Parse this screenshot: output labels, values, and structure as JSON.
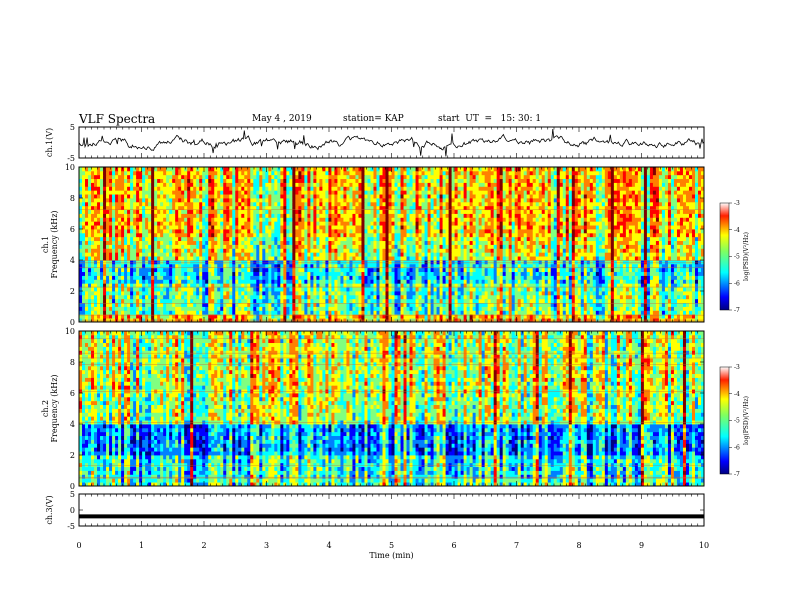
{
  "header": {
    "title": "VLF Spectra",
    "date": "May 4 , 2019",
    "station": "station= KAP",
    "start": "start  UT  =   15: 30: 1"
  },
  "chart_data": [
    {
      "type": "line",
      "ylabel": "ch.1(V)",
      "ylim": [
        -5,
        5
      ],
      "yticks": [
        "5",
        "-5"
      ],
      "xlim": [
        0,
        10
      ],
      "series": [
        {
          "values": "noisy voltage trace around 0 V, roughly between -4 and +4"
        }
      ]
    },
    {
      "type": "heatmap",
      "ylabel": "ch.1\nFrequency (kHz)",
      "ylim": [
        0,
        10
      ],
      "yticks": [
        "0",
        "2",
        "4",
        "6",
        "8",
        "10"
      ],
      "xlim": [
        0,
        10
      ],
      "colorbar": {
        "label": "log(PSD)(V²/Hz)",
        "range": [
          -7,
          -3
        ],
        "ticks": [
          "-3",
          "-4",
          "-5",
          "-6",
          "-7"
        ]
      }
    },
    {
      "type": "heatmap",
      "ylabel": "ch.2\nFrequency (kHz)",
      "ylim": [
        0,
        10
      ],
      "yticks": [
        "0",
        "2",
        "4",
        "6",
        "8",
        "10"
      ],
      "xlim": [
        0,
        10
      ],
      "colorbar": {
        "label": "log(PSD)(V²/Hz)",
        "range": [
          -7,
          -3
        ],
        "ticks": [
          "-3",
          "-4",
          "-5",
          "-6",
          "-7"
        ]
      }
    },
    {
      "type": "line",
      "ylabel": "ch.3(V)",
      "ylim": [
        -5,
        5
      ],
      "yticks": [
        "5",
        "0",
        "-5"
      ],
      "xlim": [
        0,
        10
      ],
      "series": [
        {
          "values": "constant at about -2 V"
        }
      ]
    }
  ],
  "xaxis": {
    "label": "Time  (min)",
    "ticks": [
      "0",
      "1",
      "2",
      "3",
      "4",
      "5",
      "6",
      "7",
      "8",
      "9",
      "10"
    ]
  },
  "colors": {
    "jet": [
      "#000080",
      "#0000ff",
      "#0080ff",
      "#00ffff",
      "#80ff80",
      "#ffff00",
      "#ff8000",
      "#ff0000",
      "#800000"
    ]
  }
}
